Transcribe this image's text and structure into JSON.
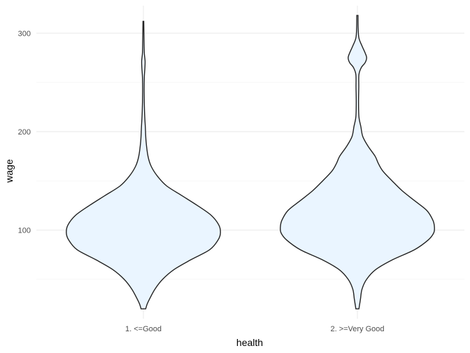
{
  "chart_data": {
    "type": "violin",
    "xlabel": "health",
    "ylabel": "wage",
    "categories": [
      "1. <=Good",
      "2. >=Very Good"
    ],
    "ylim": [
      10,
      328
    ],
    "y_major_ticks": [
      100,
      200,
      300
    ],
    "y_minor_ticks": [
      50,
      150,
      250
    ],
    "grid": true,
    "fill_color": "#eaf5ff",
    "stroke_color": "#222222",
    "series": [
      {
        "category": "1. <=Good",
        "profile": [
          [
            20,
            0.03
          ],
          [
            25,
            0.05
          ],
          [
            30,
            0.08
          ],
          [
            40,
            0.15
          ],
          [
            50,
            0.25
          ],
          [
            60,
            0.4
          ],
          [
            70,
            0.62
          ],
          [
            80,
            0.86
          ],
          [
            90,
            0.97
          ],
          [
            97,
            1.0
          ],
          [
            105,
            0.98
          ],
          [
            115,
            0.88
          ],
          [
            125,
            0.7
          ],
          [
            135,
            0.5
          ],
          [
            145,
            0.3
          ],
          [
            155,
            0.18
          ],
          [
            165,
            0.1
          ],
          [
            175,
            0.06
          ],
          [
            190,
            0.035
          ],
          [
            205,
            0.025
          ],
          [
            220,
            0.015
          ],
          [
            240,
            0.01
          ],
          [
            255,
            0.012
          ],
          [
            265,
            0.02
          ],
          [
            272,
            0.022
          ],
          [
            280,
            0.012
          ],
          [
            295,
            0.008
          ],
          [
            312,
            0.005
          ]
        ]
      },
      {
        "category": "2. >=Very Good",
        "profile": [
          [
            20,
            0.02
          ],
          [
            25,
            0.03
          ],
          [
            30,
            0.04
          ],
          [
            40,
            0.06
          ],
          [
            50,
            0.12
          ],
          [
            60,
            0.24
          ],
          [
            70,
            0.46
          ],
          [
            80,
            0.74
          ],
          [
            90,
            0.92
          ],
          [
            97,
            0.99
          ],
          [
            103,
            1.0
          ],
          [
            110,
            0.98
          ],
          [
            120,
            0.9
          ],
          [
            130,
            0.74
          ],
          [
            140,
            0.58
          ],
          [
            150,
            0.45
          ],
          [
            160,
            0.33
          ],
          [
            168,
            0.27
          ],
          [
            175,
            0.23
          ],
          [
            185,
            0.14
          ],
          [
            195,
            0.07
          ],
          [
            205,
            0.045
          ],
          [
            215,
            0.02
          ],
          [
            230,
            0.015
          ],
          [
            245,
            0.018
          ],
          [
            258,
            0.02
          ],
          [
            265,
            0.05
          ],
          [
            270,
            0.1
          ],
          [
            275,
            0.12
          ],
          [
            280,
            0.1
          ],
          [
            287,
            0.06
          ],
          [
            295,
            0.02
          ],
          [
            305,
            0.01
          ],
          [
            318,
            0.008
          ]
        ]
      }
    ]
  }
}
